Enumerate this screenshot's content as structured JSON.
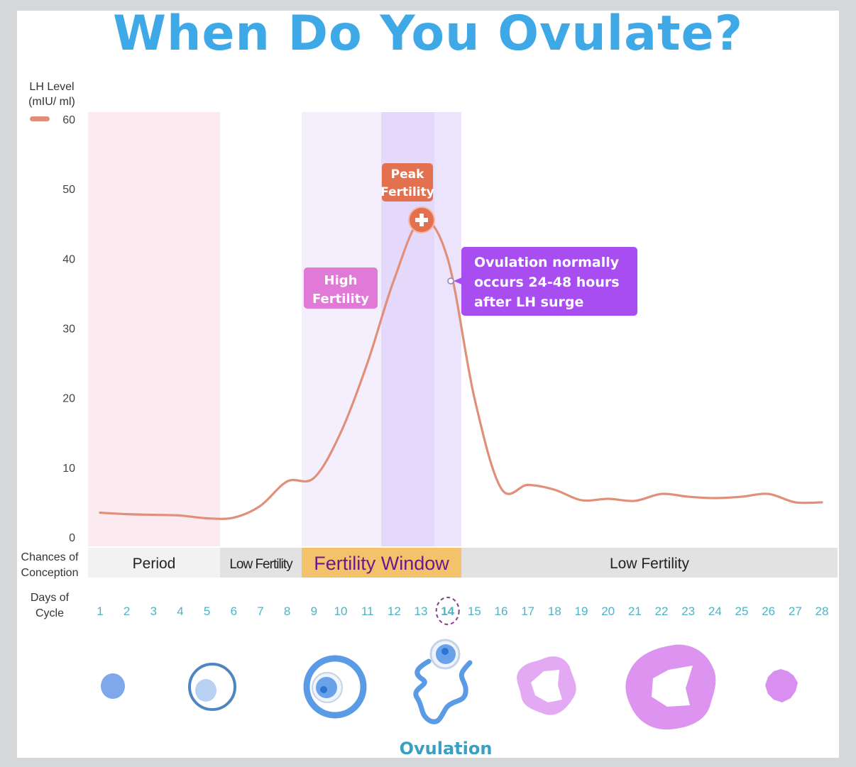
{
  "title": "When Do You Ovulate?",
  "chart_data": {
    "type": "line",
    "title": "When Do You Ovulate?",
    "ylabel": "LH Level (mIU/ ml)",
    "xlabel": "Days of Cycle",
    "ylim": [
      0,
      60
    ],
    "xlim": [
      1,
      28
    ],
    "yticks": [
      0,
      10,
      20,
      30,
      40,
      50,
      60
    ],
    "x": [
      1,
      2,
      3,
      4,
      5,
      6,
      7,
      8,
      9,
      10,
      11,
      12,
      13,
      14,
      15,
      16,
      17,
      18,
      19,
      20,
      21,
      22,
      23,
      24,
      25,
      26,
      27,
      28
    ],
    "series": [
      {
        "name": "LH Level",
        "color": "#e0907a",
        "values": [
          3.5,
          3.3,
          3.2,
          3.1,
          2.7,
          2.8,
          4.5,
          8.0,
          8.5,
          15,
          25,
          37,
          45.5,
          40,
          20,
          7.0,
          7.5,
          6.8,
          5.3,
          5.5,
          5.2,
          6.2,
          5.8,
          5.6,
          5.8,
          6.2,
          5.0,
          5.0
        ]
      }
    ],
    "grid": false,
    "legend": "top-left",
    "shaded_regions": [
      {
        "name": "period",
        "from_day": 0.5,
        "to_day": 5.5,
        "color": "#fbeaf0"
      },
      {
        "name": "fertility-window",
        "from_day": 8.5,
        "to_day": 14.5,
        "color": "#f5effd"
      },
      {
        "name": "high-fertility",
        "from_day": 11.5,
        "to_day": 13.5,
        "color": "#e4d8fb"
      },
      {
        "name": "ovulation-day",
        "from_day": 13.5,
        "to_day": 14.5,
        "color": "#ece3fc"
      }
    ],
    "annotations": [
      {
        "name": "high-fertility",
        "text_lines": [
          "High",
          "Fertility"
        ],
        "color": "#e07ad6"
      },
      {
        "name": "peak-fertility",
        "text_lines": [
          "Peak",
          "Fertility"
        ],
        "color": "#e3704f"
      },
      {
        "name": "ovulation-note",
        "text_lines": [
          "Ovulation normally",
          "occurs 24-48 hours",
          "after LH surge"
        ],
        "color": "#a84df0"
      }
    ],
    "highlight_day": 14
  },
  "axis": {
    "y_title_line1": "LH Level",
    "y_title_line2": "(mIU/ ml)",
    "tick_labels": [
      "0",
      "10",
      "20",
      "30",
      "40",
      "50",
      "60"
    ]
  },
  "conception_row": {
    "label_line1": "Chances of",
    "label_line2": "Conception",
    "segments": [
      {
        "label": "Period",
        "from_day": 0.5,
        "to_day": 5.5,
        "color": "#f2f2f2"
      },
      {
        "label": "Low Fertility",
        "from_day": 5.5,
        "to_day": 8.5,
        "color": "#e2e2e2"
      },
      {
        "label": "Fertility Window",
        "from_day": 8.5,
        "to_day": 14.5,
        "color": "#f4c26b"
      },
      {
        "label": "Low Fertility",
        "from_day": 14.5,
        "to_day": 28.5,
        "color": "#e2e2e2"
      }
    ]
  },
  "days_row": {
    "label_line1": "Days of",
    "label_line2": "Cycle",
    "days": [
      "1",
      "2",
      "3",
      "4",
      "5",
      "6",
      "7",
      "8",
      "9",
      "10",
      "11",
      "12",
      "13",
      "14",
      "15",
      "16",
      "17",
      "18",
      "19",
      "20",
      "21",
      "22",
      "23",
      "24",
      "25",
      "26",
      "27",
      "28"
    ]
  },
  "stages": {
    "icons": [
      "follicle-small-icon",
      "follicle-growing-icon",
      "follicle-mature-icon",
      "ovulation-egg-release-icon",
      "corpus-luteum-icon",
      "corpus-luteum-large-icon",
      "corpus-albicans-icon"
    ],
    "ovulation_label": "Ovulation"
  },
  "colors": {
    "title": "#3fa9e8",
    "line": "#e0907a",
    "day_numbers": "#4fb3c4",
    "high_fertility_badge": "#e07ad6",
    "peak_fertility_badge": "#e3704f",
    "ovulation_note_badge": "#a84df0",
    "fertility_window_text": "#6a1a8a",
    "follicle_blue": "#5b9be6",
    "luteum_purple": "#dc94f0"
  }
}
